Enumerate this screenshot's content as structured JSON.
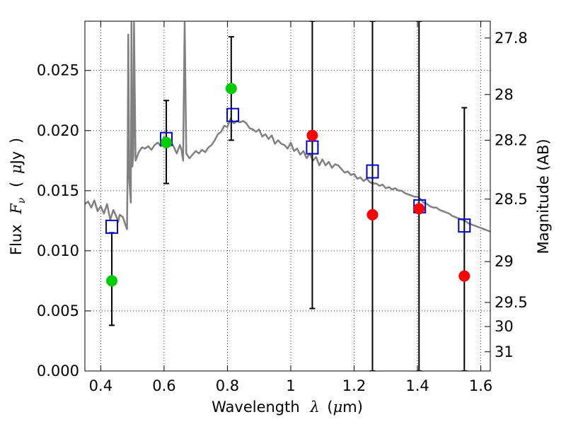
{
  "chart_data": {
    "type": "scatter",
    "x_label_prefix": "Wavelength",
    "x_label_symbol": "λ",
    "x_label_unit_open": "(",
    "x_label_unit_mu": "μ",
    "x_label_unit_rest": "m)",
    "y_label_prefix": "Flux",
    "y_label_symbol": "F",
    "y_label_subscript": "ν",
    "y_label_unit_open": "(",
    "y_label_unit_mu": "μ",
    "y_label_unit_rest": "Jy",
    "y_label_unit_close": ")",
    "y2_label": "Magnitude (AB)",
    "xlim": [
      0.35,
      1.63
    ],
    "ylim": [
      0.0,
      0.0291
    ],
    "grid": true,
    "x_ticks": [
      {
        "value": 0.4,
        "label": "0.4"
      },
      {
        "value": 0.6,
        "label": "0.6"
      },
      {
        "value": 0.8,
        "label": "0.8"
      },
      {
        "value": 1.0,
        "label": "1"
      },
      {
        "value": 1.2,
        "label": "1.2"
      },
      {
        "value": 1.4,
        "label": "1.4"
      },
      {
        "value": 1.6,
        "label": "1.6"
      }
    ],
    "y_ticks": [
      {
        "value": 0.0,
        "label": "0.000"
      },
      {
        "value": 0.005,
        "label": "0.005"
      },
      {
        "value": 0.01,
        "label": "0.010"
      },
      {
        "value": 0.015,
        "label": "0.015"
      },
      {
        "value": 0.02,
        "label": "0.020"
      },
      {
        "value": 0.025,
        "label": "0.025"
      }
    ],
    "y2_ticks": [
      {
        "flux": 0.0277,
        "label": "27.8"
      },
      {
        "flux": 0.023,
        "label": "28"
      },
      {
        "flux": 0.0192,
        "label": "28.2"
      },
      {
        "flux": 0.0143,
        "label": "28.5"
      },
      {
        "flux": 0.0091,
        "label": "29"
      },
      {
        "flux": 0.0057,
        "label": "29.5"
      },
      {
        "flux": 0.0037,
        "label": "30"
      },
      {
        "flux": 0.0016,
        "label": "31"
      }
    ],
    "series": [
      {
        "kind": "sed_model",
        "color": "#808080",
        "x": [
          0.35,
          0.36,
          0.37,
          0.38,
          0.39,
          0.4,
          0.41,
          0.42,
          0.43,
          0.44,
          0.45,
          0.455,
          0.46,
          0.47,
          0.48,
          0.483,
          0.485,
          0.487,
          0.49,
          0.495,
          0.497,
          0.5,
          0.503,
          0.505,
          0.51,
          0.52,
          0.53,
          0.54,
          0.55,
          0.56,
          0.57,
          0.58,
          0.59,
          0.6,
          0.61,
          0.62,
          0.63,
          0.64,
          0.65,
          0.655,
          0.66,
          0.665,
          0.67,
          0.68,
          0.69,
          0.7,
          0.71,
          0.72,
          0.73,
          0.74,
          0.75,
          0.76,
          0.77,
          0.78,
          0.79,
          0.8,
          0.81,
          0.82,
          0.83,
          0.84,
          0.85,
          0.86,
          0.87,
          0.88,
          0.89,
          0.9,
          0.91,
          0.92,
          0.93,
          0.94,
          0.95,
          0.96,
          0.97,
          0.98,
          0.99,
          1.0,
          1.01,
          1.02,
          1.03,
          1.04,
          1.05,
          1.06,
          1.07,
          1.08,
          1.09,
          1.1,
          1.11,
          1.12,
          1.13,
          1.14,
          1.15,
          1.16,
          1.17,
          1.18,
          1.19,
          1.2,
          1.21,
          1.22,
          1.23,
          1.24,
          1.25,
          1.26,
          1.27,
          1.28,
          1.29,
          1.3,
          1.31,
          1.32,
          1.33,
          1.34,
          1.35,
          1.36,
          1.37,
          1.38,
          1.39,
          1.4,
          1.41,
          1.42,
          1.43,
          1.44,
          1.45,
          1.46,
          1.47,
          1.48,
          1.49,
          1.5,
          1.51,
          1.52,
          1.53,
          1.54,
          1.55,
          1.56,
          1.57,
          1.58,
          1.59,
          1.6,
          1.61,
          1.62,
          1.63
        ],
        "y": [
          0.0139,
          0.0141,
          0.0136,
          0.0142,
          0.0133,
          0.0137,
          0.0131,
          0.0139,
          0.0126,
          0.0134,
          0.0128,
          0.0124,
          0.013,
          0.0128,
          0.012,
          0.0118,
          0.017,
          0.028,
          0.016,
          0.014,
          0.029,
          0.017,
          0.018,
          0.029,
          0.0175,
          0.0182,
          0.0186,
          0.0185,
          0.0187,
          0.0184,
          0.0188,
          0.019,
          0.0187,
          0.0195,
          0.0186,
          0.0191,
          0.0187,
          0.0181,
          0.0188,
          0.0184,
          0.0175,
          0.029,
          0.0181,
          0.0177,
          0.018,
          0.0183,
          0.0181,
          0.0184,
          0.0182,
          0.0186,
          0.0188,
          0.0192,
          0.0197,
          0.0199,
          0.0204,
          0.0203,
          0.021,
          0.0206,
          0.0208,
          0.0207,
          0.0208,
          0.0206,
          0.0202,
          0.0201,
          0.0199,
          0.0201,
          0.0195,
          0.0197,
          0.0193,
          0.0196,
          0.0189,
          0.0192,
          0.0189,
          0.0188,
          0.0185,
          0.019,
          0.0183,
          0.0185,
          0.018,
          0.0183,
          0.0177,
          0.0181,
          0.0175,
          0.0178,
          0.0171,
          0.0176,
          0.0171,
          0.0174,
          0.0169,
          0.0172,
          0.0171,
          0.0168,
          0.0165,
          0.0166,
          0.0163,
          0.0164,
          0.016,
          0.0161,
          0.0158,
          0.016,
          0.0157,
          0.0156,
          0.0156,
          0.0154,
          0.0155,
          0.0152,
          0.0153,
          0.0151,
          0.0152,
          0.015,
          0.015,
          0.0148,
          0.0147,
          0.0146,
          0.0145,
          0.0145,
          0.0143,
          0.014,
          0.0139,
          0.0137,
          0.0136,
          0.0136,
          0.0134,
          0.0133,
          0.0132,
          0.0131,
          0.0129,
          0.0128,
          0.0127,
          0.0126,
          0.0125,
          0.0123,
          0.0122,
          0.0121,
          0.012,
          0.0119,
          0.0118,
          0.0117,
          0.0116
        ]
      },
      {
        "kind": "model_photometry",
        "marker": "open-square",
        "color": "#0000cc",
        "x": [
          0.435,
          0.607,
          0.817,
          1.068,
          1.258,
          1.407,
          1.548
        ],
        "y": [
          0.012,
          0.0193,
          0.0213,
          0.0186,
          0.0166,
          0.0137,
          0.0121
        ]
      },
      {
        "kind": "detections",
        "marker": "filled-circle",
        "color": "#00cc00",
        "x": [
          0.435,
          0.607,
          0.812
        ],
        "y": [
          0.0075,
          0.019,
          0.0235
        ],
        "yerr_low": [
          0.0038,
          0.0156,
          0.0192
        ],
        "yerr_high": [
          0.0115,
          0.0225,
          0.0278
        ]
      },
      {
        "kind": "non_detections",
        "marker": "filled-circle",
        "color": "#ff0000",
        "x": [
          1.068,
          1.258,
          1.405,
          1.548
        ],
        "y": [
          0.0196,
          0.013,
          0.0135,
          0.0079
        ],
        "yerr_low": [
          0.0052,
          0.0,
          0.0,
          0.0
        ],
        "yerr_high": [
          0.0291,
          0.0291,
          0.0291,
          0.0219
        ]
      }
    ]
  }
}
